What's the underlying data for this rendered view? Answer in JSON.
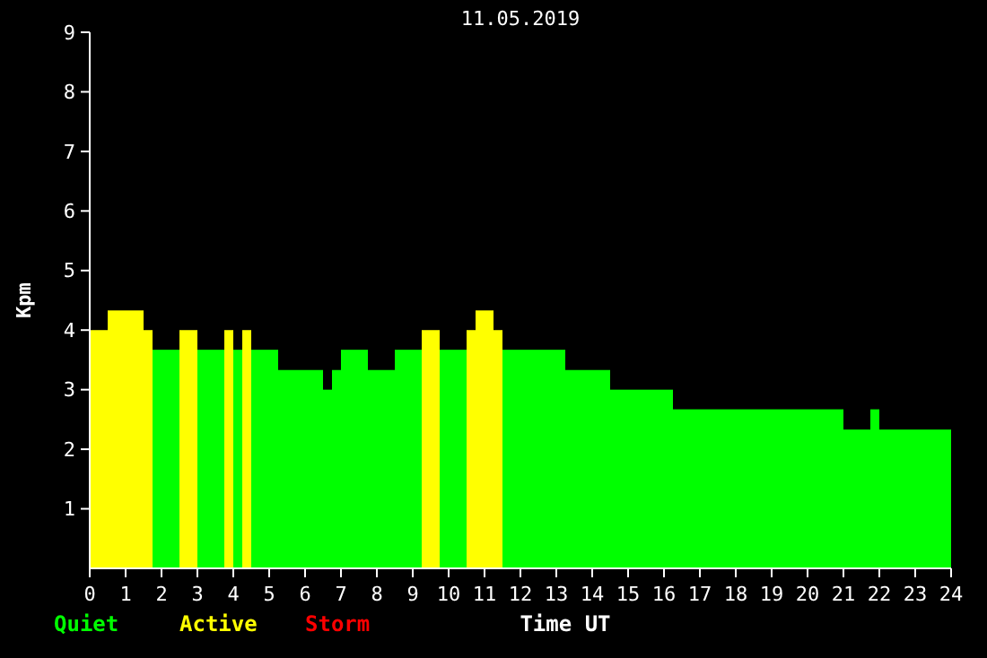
{
  "chart_data": {
    "type": "histogram",
    "title": "11.05.2019",
    "xlabel": "Time UT",
    "ylabel": "Kpm",
    "bins": [
      0,
      0.5,
      1.5,
      1.75,
      2.5,
      3,
      3.75,
      4,
      4.25,
      4.5,
      5.25,
      6.5,
      6.75,
      7,
      7.75,
      8.5,
      9.25,
      9.75,
      10.5,
      10.75,
      11.25,
      11.5,
      13.25,
      14.5,
      16.25,
      21,
      21.75,
      22,
      24
    ],
    "series": [
      {
        "name": "Quiet",
        "color": "#00ff00",
        "values": [
          null,
          null,
          null,
          3.67,
          null,
          3.67,
          null,
          3.67,
          null,
          3.67,
          3.33,
          3,
          3.33,
          3.67,
          3.33,
          3.67,
          null,
          3.67,
          null,
          null,
          null,
          3.67,
          3.33,
          3,
          2.67,
          2.33,
          2.67,
          2.33
        ]
      },
      {
        "name": "Active",
        "color": "#ffff00",
        "values": [
          4,
          4.33,
          4,
          null,
          4,
          null,
          4,
          null,
          4,
          null,
          null,
          null,
          null,
          null,
          null,
          null,
          4,
          null,
          4,
          4.33,
          4,
          null,
          null,
          null,
          null,
          null,
          null,
          null
        ]
      }
    ],
    "annotations": [
      "Storm"
    ],
    "xlim": [
      0,
      24
    ],
    "xticks": [
      0,
      1,
      2,
      3,
      4,
      5,
      6,
      7,
      8,
      9,
      10,
      11,
      12,
      13,
      14,
      15,
      16,
      17,
      18,
      19,
      20,
      21,
      22,
      23,
      24
    ],
    "ylim": [
      0,
      9
    ],
    "yticks": [
      1,
      2,
      3,
      4,
      5,
      6,
      7,
      8,
      9
    ],
    "legend": "bottom left",
    "grid": false
  }
}
